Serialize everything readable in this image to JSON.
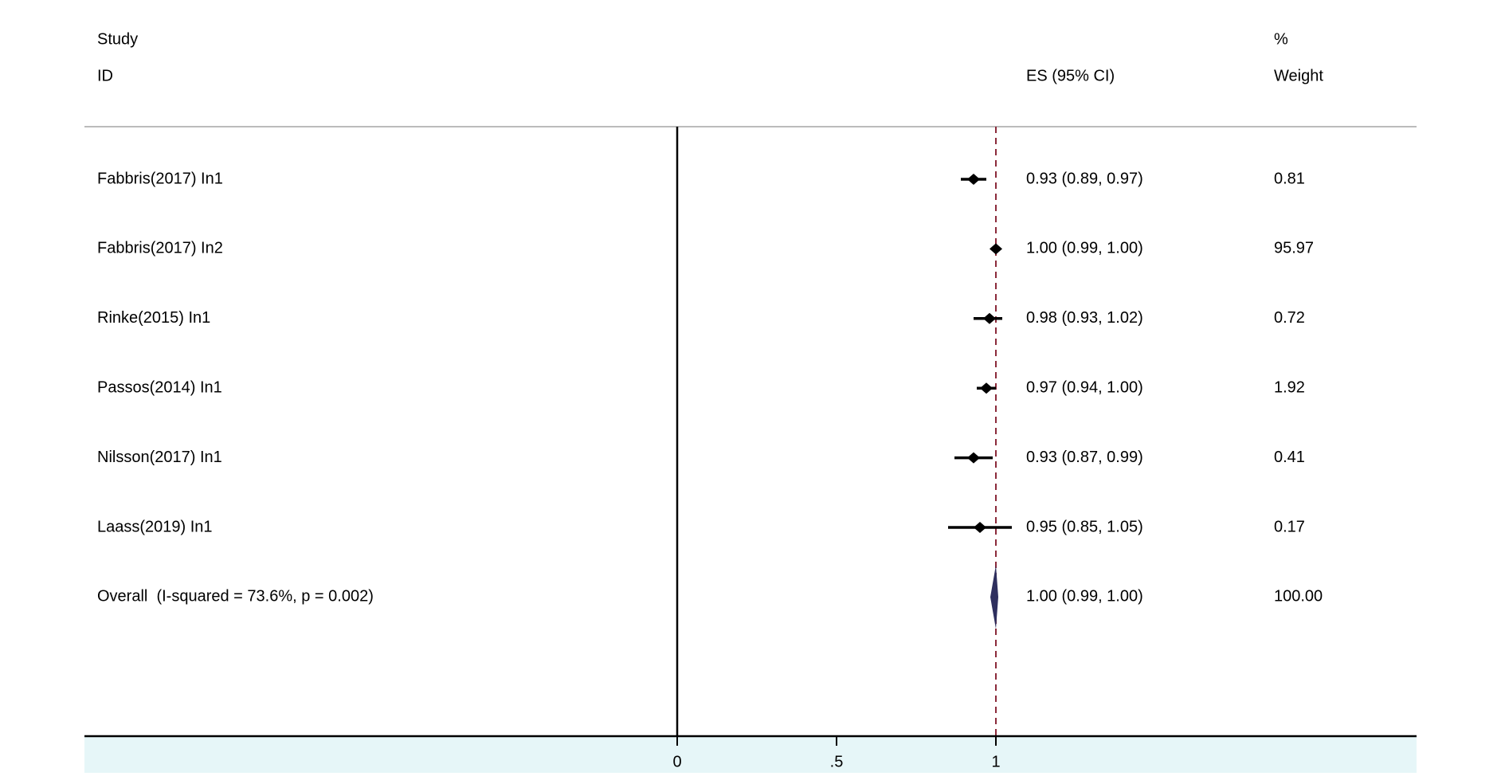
{
  "chart_data": {
    "type": "forest",
    "header": {
      "study": "Study",
      "id": "ID",
      "es": "ES (95% CI)",
      "pct": "%",
      "weight": "Weight"
    },
    "studies": [
      {
        "name": "Fabbris(2017) In1",
        "es": 0.93,
        "lower": 0.89,
        "upper": 0.97,
        "label": "0.93 (0.89, 0.97)",
        "weight": 0.81
      },
      {
        "name": "Fabbris(2017) In2",
        "es": 1.0,
        "lower": 0.99,
        "upper": 1.0,
        "label": "1.00 (0.99, 1.00)",
        "weight": 95.97
      },
      {
        "name": "Rinke(2015) In1",
        "es": 0.98,
        "lower": 0.93,
        "upper": 1.02,
        "label": "0.98 (0.93, 1.02)",
        "weight": 0.72
      },
      {
        "name": "Passos(2014) In1",
        "es": 0.97,
        "lower": 0.94,
        "upper": 1.0,
        "label": "0.97 (0.94, 1.00)",
        "weight": 1.92
      },
      {
        "name": "Nilsson(2017) In1",
        "es": 0.93,
        "lower": 0.87,
        "upper": 0.99,
        "label": "0.93 (0.87, 0.99)",
        "weight": 0.41
      },
      {
        "name": "Laass(2019) In1",
        "es": 0.95,
        "lower": 0.85,
        "upper": 1.05,
        "label": "0.95 (0.85, 1.05)",
        "weight": 0.17
      }
    ],
    "overall": {
      "name": "Overall  (I-squared = 73.6%, p = 0.002)",
      "es": 1.0,
      "lower": 0.99,
      "upper": 1.0,
      "label": "1.00 (0.99, 1.00)",
      "weight": {
        "value": 100,
        "label": "100.00"
      },
      "color": "#2e2f5e"
    },
    "null_line": 0,
    "marker_color": "#000000",
    "ref_line_color": "#8b2a3a",
    "xlim": [
      -1.86,
      2.32
    ],
    "xticks": [
      0,
      {
        "value": 0.5,
        "label": ".5"
      },
      1
    ]
  }
}
